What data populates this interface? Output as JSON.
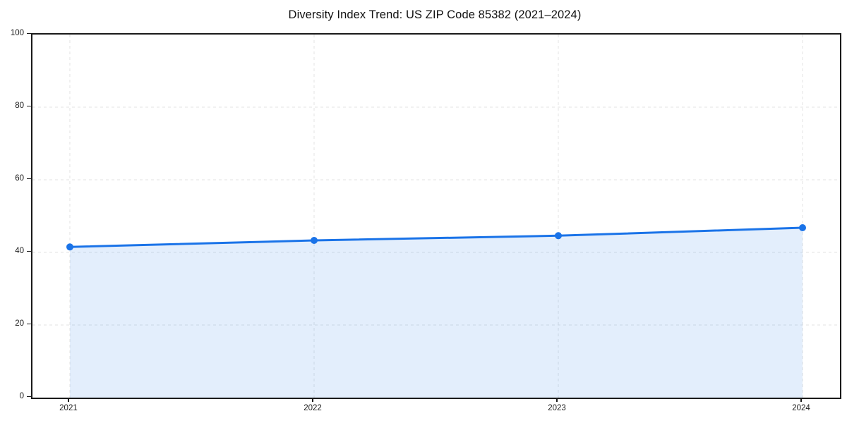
{
  "chart_data": {
    "type": "line",
    "title": "Diversity Index Trend: US ZIP Code 85382 (2021–2024)",
    "categories": [
      "2021",
      "2022",
      "2023",
      "2024"
    ],
    "series": [
      {
        "name": "Diversity Index",
        "values": [
          41.5,
          43.3,
          44.6,
          46.8
        ]
      }
    ],
    "xlabel": "",
    "ylabel": "",
    "ylim": [
      0,
      100
    ],
    "y_ticks": [
      0,
      20,
      40,
      60,
      80,
      100
    ],
    "grid": true,
    "grid_style": "dashed",
    "legend_position": "none",
    "area_fill": true,
    "marker": "circle",
    "colors": {
      "line": "#1a73e8",
      "marker": "#1a73e8",
      "fill": "rgba(26,115,232,0.12)",
      "grid": "#e3e3e3",
      "axis": "#1a1a1a",
      "text": "#1a1a1a",
      "background": "#ffffff"
    }
  }
}
